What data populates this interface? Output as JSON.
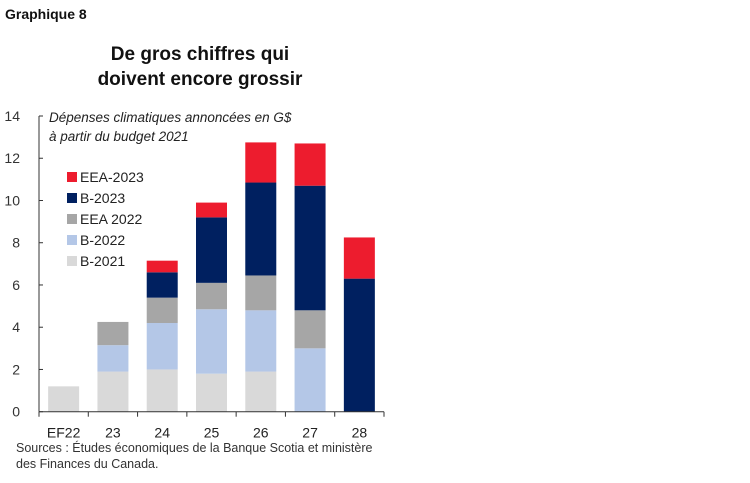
{
  "label": "Graphique 8",
  "title_lines": [
    "De gros chiffres qui",
    "doivent encore grossir"
  ],
  "source_lines": [
    "Sources : Études économiques de la Banque Scotia et ministère",
    "des Finances du Canada."
  ],
  "chart_data": {
    "type": "bar",
    "stacked": true,
    "title": "De gros chiffres qui doivent encore grossir",
    "annotation_lines": [
      "Dépenses climatiques annoncées en G$",
      "à partir du budget 2021"
    ],
    "categories": [
      "EF22",
      "23",
      "24",
      "25",
      "26",
      "27",
      "28"
    ],
    "ylim": [
      0,
      14
    ],
    "yticks": [
      0,
      2,
      4,
      6,
      8,
      10,
      12,
      14
    ],
    "grid": false,
    "legend_placement": "top-left",
    "series": [
      {
        "name": "B-2021",
        "color": "#d9d9d9",
        "values": [
          1.2,
          1.9,
          2.0,
          1.8,
          1.9,
          0,
          0
        ]
      },
      {
        "name": "B-2022",
        "color": "#b4c7e7",
        "values": [
          0,
          1.25,
          2.2,
          3.05,
          2.9,
          3.0,
          0
        ]
      },
      {
        "name": "EEA 2022",
        "color": "#a6a6a6",
        "values": [
          0,
          1.1,
          1.2,
          1.25,
          1.65,
          1.8,
          0
        ]
      },
      {
        "name": "B-2023",
        "color": "#002060",
        "values": [
          0,
          0,
          1.2,
          3.1,
          4.4,
          5.9,
          6.3
        ]
      },
      {
        "name": "EEA-2023",
        "color": "#ed1c2e",
        "values": [
          0,
          0,
          0.55,
          0.7,
          1.9,
          2.0,
          1.95
        ]
      }
    ]
  }
}
